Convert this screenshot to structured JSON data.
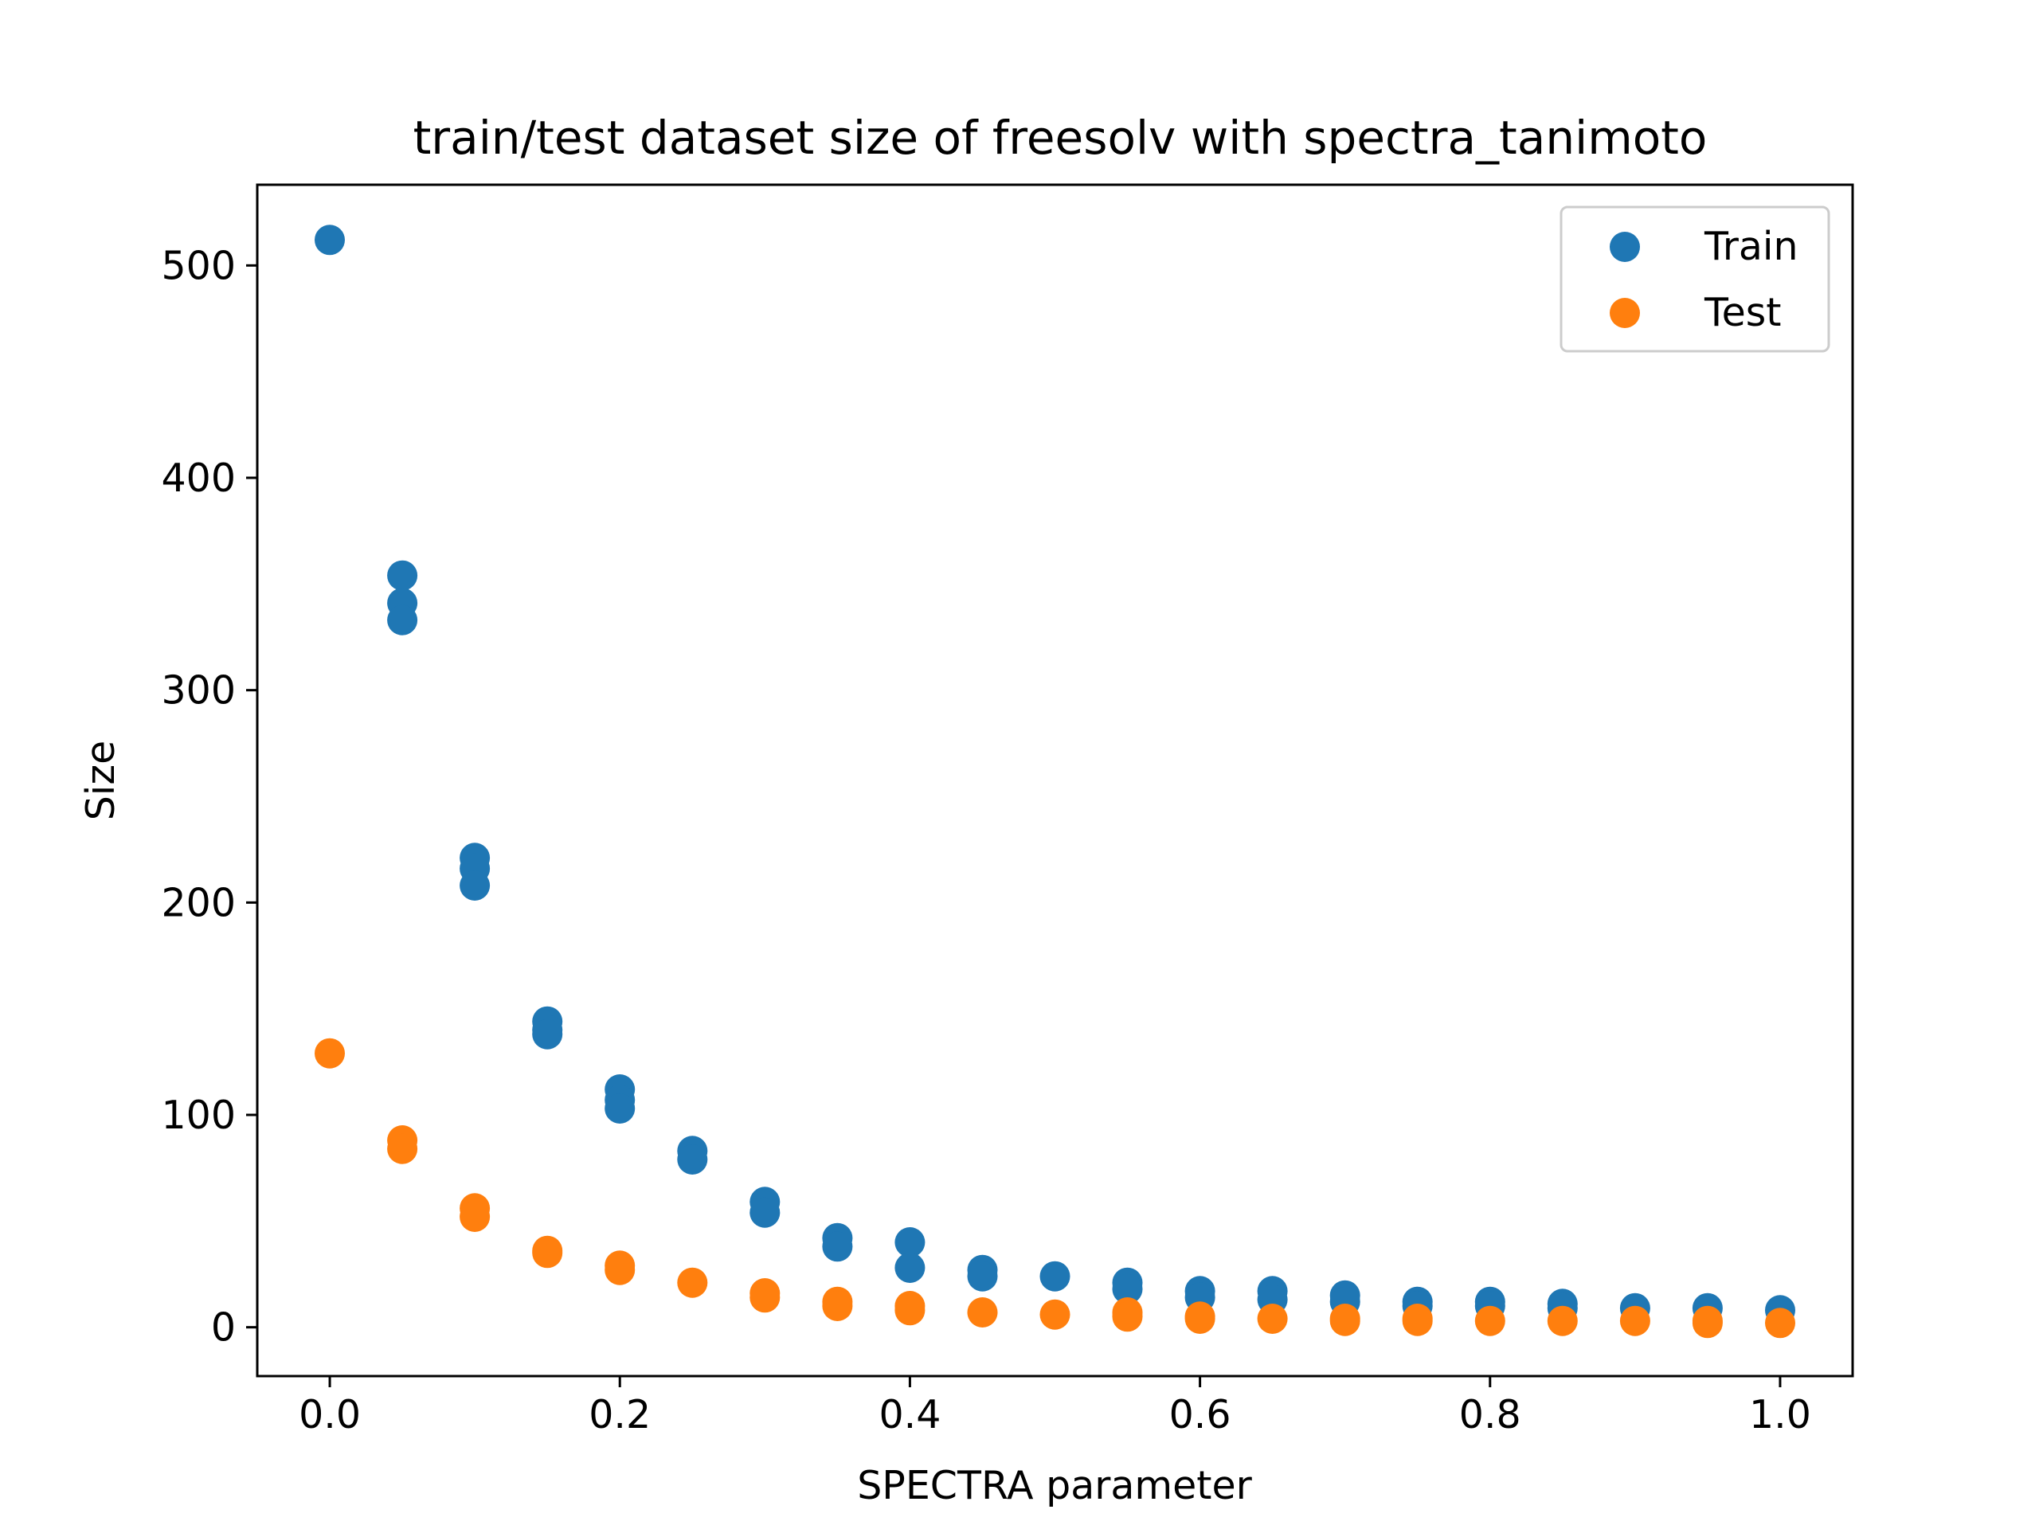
{
  "chart_data": {
    "type": "scatter",
    "title": "train/test dataset size of freesolv with spectra_tanimoto",
    "xlabel": "SPECTRA parameter",
    "ylabel": "Size",
    "xlim": [
      -0.05,
      1.05
    ],
    "ylim": [
      -23,
      538
    ],
    "xticks": [
      0.0,
      0.2,
      0.4,
      0.6,
      0.8,
      1.0
    ],
    "xtick_labels": [
      "0.0",
      "0.2",
      "0.4",
      "0.6",
      "0.8",
      "1.0"
    ],
    "yticks": [
      0,
      100,
      200,
      300,
      400,
      500
    ],
    "ytick_labels": [
      "0",
      "100",
      "200",
      "300",
      "400",
      "500"
    ],
    "grid": false,
    "legend_position": "top-right",
    "series": [
      {
        "name": "Train",
        "color": "#1f77b4",
        "x": [
          0.0,
          0.05,
          0.05,
          0.05,
          0.1,
          0.1,
          0.1,
          0.15,
          0.15,
          0.15,
          0.2,
          0.2,
          0.2,
          0.25,
          0.25,
          0.3,
          0.3,
          0.35,
          0.35,
          0.4,
          0.4,
          0.45,
          0.45,
          0.5,
          0.55,
          0.55,
          0.6,
          0.6,
          0.65,
          0.65,
          0.7,
          0.7,
          0.75,
          0.75,
          0.8,
          0.8,
          0.85,
          0.85,
          0.9,
          0.95,
          1.0
        ],
        "y": [
          512,
          354,
          341,
          333,
          221,
          216,
          208,
          144,
          140,
          138,
          112,
          107,
          103,
          83,
          79,
          59,
          54,
          42,
          38,
          40,
          28,
          27,
          24,
          24,
          21,
          18,
          17,
          14,
          17,
          13,
          15,
          12,
          12,
          10,
          12,
          10,
          11,
          9,
          9,
          9,
          8
        ]
      },
      {
        "name": "Test",
        "color": "#ff7f0e",
        "x": [
          0.0,
          0.05,
          0.05,
          0.1,
          0.1,
          0.15,
          0.15,
          0.2,
          0.2,
          0.25,
          0.3,
          0.3,
          0.35,
          0.35,
          0.4,
          0.4,
          0.45,
          0.5,
          0.55,
          0.55,
          0.6,
          0.6,
          0.65,
          0.7,
          0.7,
          0.75,
          0.75,
          0.8,
          0.85,
          0.9,
          0.95,
          0.95,
          1.0
        ],
        "y": [
          129,
          88,
          84,
          56,
          52,
          36,
          35,
          29,
          27,
          21,
          16,
          14,
          12,
          10,
          10,
          8,
          7,
          6,
          7,
          5,
          5,
          4,
          4,
          4,
          3,
          4,
          3,
          3,
          3,
          3,
          3,
          2,
          2
        ]
      }
    ]
  }
}
